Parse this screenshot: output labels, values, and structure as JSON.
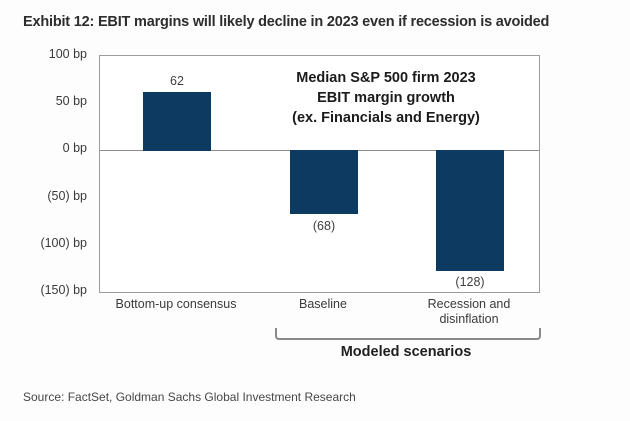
{
  "title": "Exhibit 12: EBIT margins will likely decline in 2023 even if recession is avoided",
  "source": "Source: FactSet, Goldman Sachs Global Investment Research",
  "colors": {
    "bar": "#0d3a60",
    "plot_border": "#9b9b9b",
    "label_text": "#3a3a3a"
  },
  "chart_data": {
    "type": "bar",
    "categories": [
      "Bottom-up consensus",
      "Baseline",
      "Recession and disinflation"
    ],
    "values": [
      62,
      -68,
      -128
    ],
    "data_labels": [
      "62",
      "(68)",
      "(128)"
    ],
    "y_ticks": [
      {
        "value": 100,
        "label": "100 bp"
      },
      {
        "value": 50,
        "label": "50 bp"
      },
      {
        "value": 0,
        "label": "0 bp"
      },
      {
        "value": -50,
        "label": "(50) bp"
      },
      {
        "value": -100,
        "label": "(100) bp"
      },
      {
        "value": -150,
        "label": "(150) bp"
      }
    ],
    "ylim": [
      -150,
      100
    ],
    "grid": "zero-line-only",
    "legend": "none",
    "bar_color": "#0d3a60",
    "annotation": {
      "line1": "Median S&P 500 firm 2023",
      "line2": "EBIT margin growth",
      "line3": "(ex. Financials and Energy)"
    },
    "bracket": {
      "label": "Modeled scenarios",
      "spans_categories": [
        "Baseline",
        "Recession and disinflation"
      ]
    }
  }
}
